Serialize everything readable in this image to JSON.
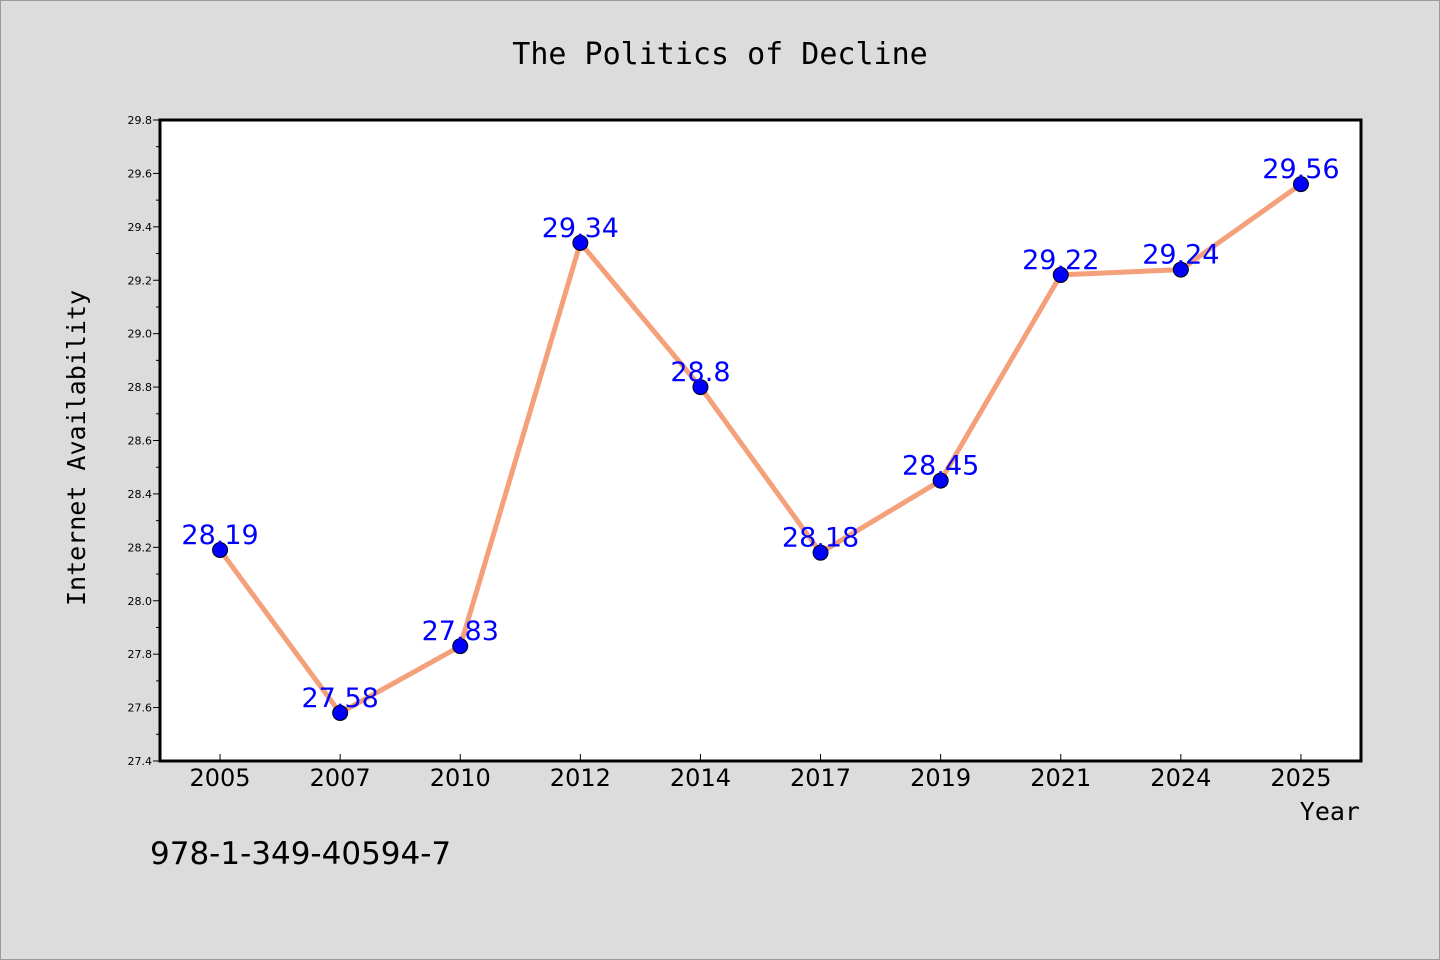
{
  "chart_data": {
    "type": "line",
    "title": "The Politics of Decline",
    "xlabel": "Year",
    "ylabel": "Internet Availability",
    "categories": [
      "2005",
      "2007",
      "2010",
      "2012",
      "2014",
      "2017",
      "2019",
      "2021",
      "2024",
      "2025"
    ],
    "series": [
      {
        "values": [
          28.19,
          27.58,
          27.83,
          29.34,
          28.8,
          28.18,
          28.45,
          29.22,
          29.24,
          29.56
        ]
      }
    ],
    "ylim": [
      27.4,
      29.8
    ],
    "yticks": [
      "27.4",
      "27.6",
      "27.8",
      "28.0",
      "28.2",
      "28.4",
      "28.6",
      "28.8",
      "29.0",
      "29.2",
      "29.4",
      "29.6",
      "29.8"
    ],
    "data_labels": [
      "28.19",
      "27.58",
      "27.83",
      "29.34",
      "28.8",
      "28.18",
      "28.45",
      "29.22",
      "29.24",
      "29.56"
    ],
    "grid": false,
    "legend": "none",
    "line_color": "#f4a07a",
    "marker_color": "#0000ff",
    "label_color": "#0000ff",
    "background_color": "#dcdcdc",
    "plot_background": "#ffffff"
  },
  "annotation": {
    "isbn": "978-1-349-40594-7"
  }
}
